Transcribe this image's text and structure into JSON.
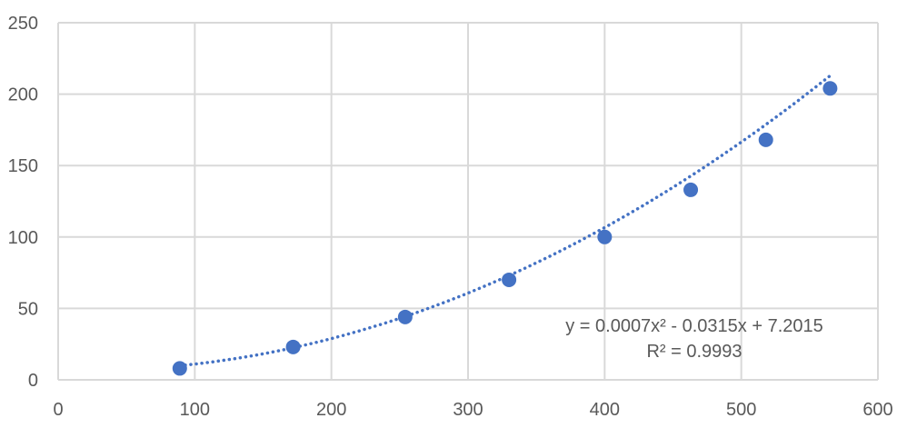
{
  "chart_data": {
    "type": "scatter",
    "xlim": [
      0,
      600
    ],
    "ylim": [
      0,
      250
    ],
    "x_ticks": [
      0,
      100,
      200,
      300,
      400,
      500,
      600
    ],
    "y_ticks": [
      0,
      50,
      100,
      150,
      200,
      250
    ],
    "grid": true,
    "series": [
      {
        "x": [
          89,
          172,
          254,
          330,
          400,
          463,
          518,
          565
        ],
        "y": [
          8,
          23,
          44,
          70,
          100,
          133,
          168,
          204
        ]
      }
    ],
    "trendline": {
      "type": "polynomial",
      "order": 2,
      "style": "dotted",
      "coefficients": [
        0.0007,
        -0.0315,
        7.2015
      ],
      "x_range": [
        89,
        565
      ]
    },
    "annotations": {
      "equation": "y = 0.0007x² - 0.0315x + 7.2015",
      "r_squared": "R² = 0.9993"
    },
    "colors": {
      "marker": "#4472C4",
      "trendline": "#4472C4",
      "grid": "#D9D9D9",
      "text": "#595959"
    }
  }
}
